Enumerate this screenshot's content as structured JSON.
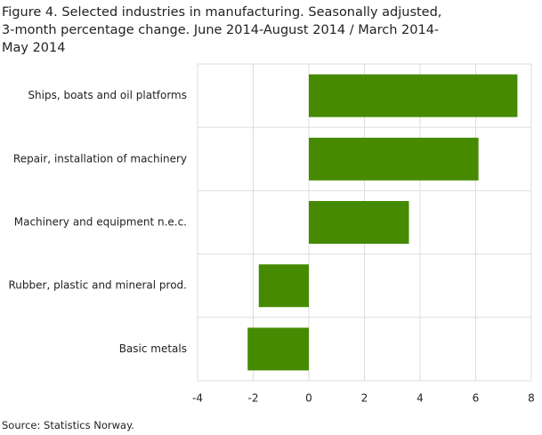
{
  "chart_data": {
    "type": "hbar",
    "title": "Figure 4. Selected industries in manufacturing. Seasonally adjusted, 3-month percentage change. June 2014-August 2014 / March 2014-May 2014",
    "categories": [
      "Ships, boats and oil platforms",
      "Repair, installation of machinery",
      "Machinery and equipment n.e.c.",
      "Rubber, plastic and mineral prod.",
      "Basic metals"
    ],
    "values": [
      7.5,
      6.1,
      3.6,
      -1.8,
      -2.2
    ],
    "color": "#458a00",
    "xlim": [
      -4,
      8
    ],
    "xticks": [
      -4,
      -2,
      0,
      2,
      4,
      6,
      8
    ],
    "grid": true,
    "source": "Source: Statistics Norway."
  }
}
